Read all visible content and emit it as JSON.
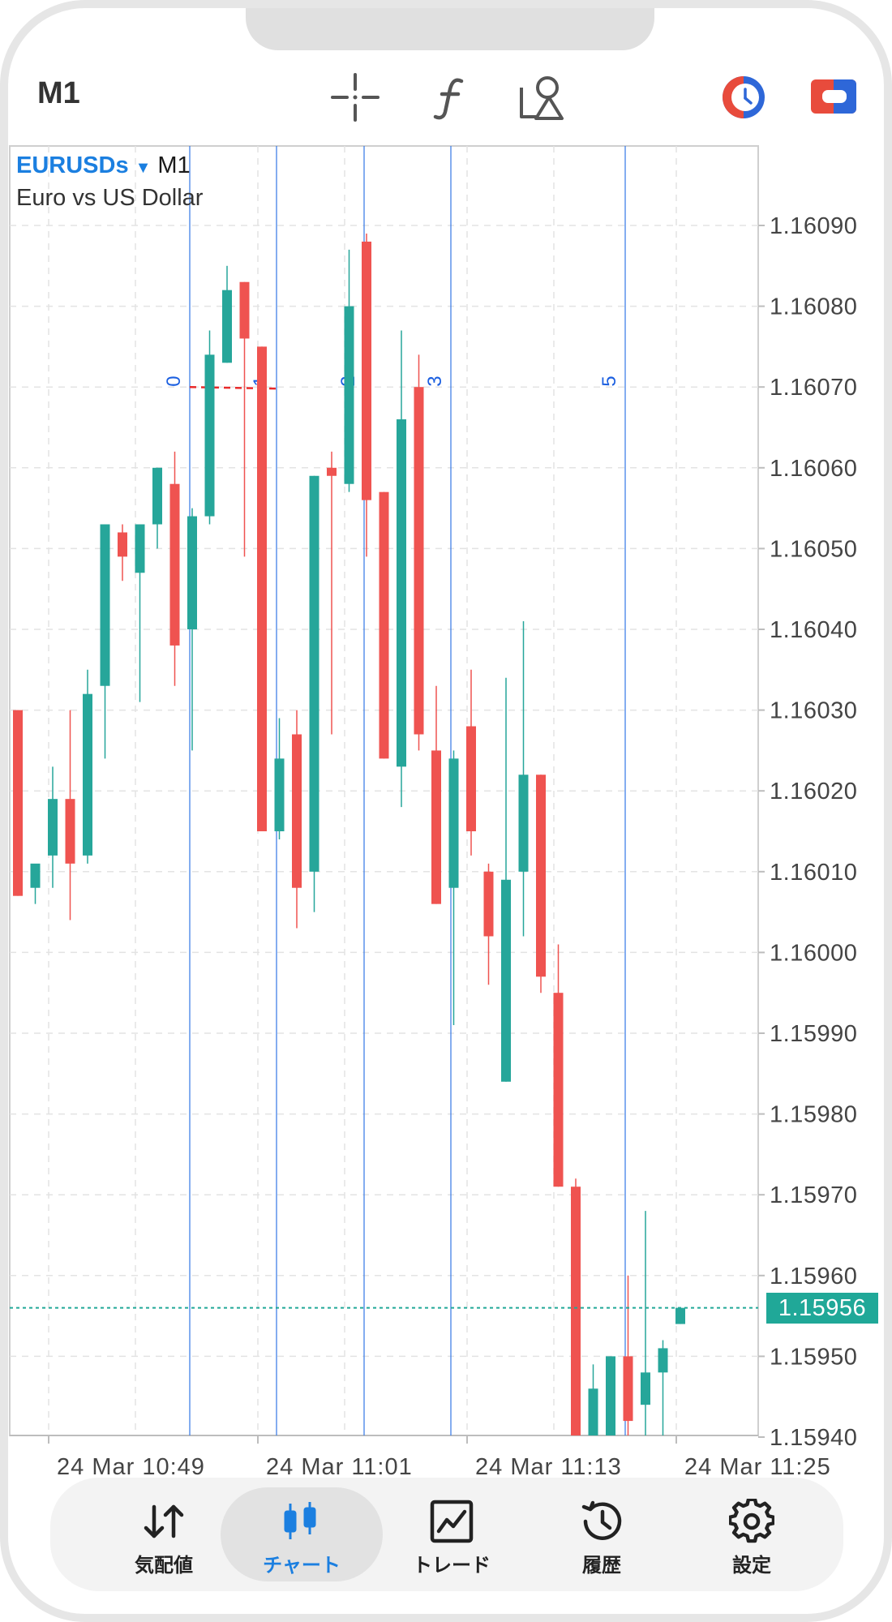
{
  "header": {
    "timeframe": "M1",
    "icons": [
      "crosshair-icon",
      "function-icon",
      "objects-icon",
      "one-click-trading-icon",
      "trade-panel-icon"
    ]
  },
  "chart": {
    "symbol": "EURUSDs",
    "arrow": "▼",
    "timeframe": "M1",
    "description": "Euro vs US Dollar",
    "current_price": "1.15956",
    "colors": {
      "bull": "#26a69a",
      "bear": "#ef5350",
      "vline": "#3f7fe8",
      "fib_label": "#1b5fe0"
    }
  },
  "chart_data": {
    "type": "candlestick",
    "y_ticks": [
      "1.16090",
      "1.16080",
      "1.16070",
      "1.16060",
      "1.16050",
      "1.16040",
      "1.16030",
      "1.16020",
      "1.16010",
      "1.16000",
      "1.15990",
      "1.15980",
      "1.15970",
      "1.15960",
      "1.15950",
      "1.15940"
    ],
    "x_ticks": [
      "24 Mar 10:49",
      "24 Mar 11:01",
      "24 Mar 11:13",
      "24 Mar 11:25"
    ],
    "current_price": 1.15956,
    "fib_time_zone_labels": [
      "0",
      "1",
      "2",
      "3",
      "5"
    ],
    "candles": [
      {
        "o": 1.1603,
        "h": 1.1603,
        "l": 1.16007,
        "c": 1.16007
      },
      {
        "o": 1.16008,
        "h": 1.1601,
        "l": 1.16006,
        "c": 1.16011
      },
      {
        "o": 1.16012,
        "h": 1.16023,
        "l": 1.16008,
        "c": 1.16019
      },
      {
        "o": 1.16019,
        "h": 1.1603,
        "l": 1.16004,
        "c": 1.16011
      },
      {
        "o": 1.16012,
        "h": 1.16035,
        "l": 1.16011,
        "c": 1.16032
      },
      {
        "o": 1.16033,
        "h": 1.16053,
        "l": 1.16024,
        "c": 1.16053
      },
      {
        "o": 1.16052,
        "h": 1.16053,
        "l": 1.16046,
        "c": 1.16049
      },
      {
        "o": 1.16047,
        "h": 1.16053,
        "l": 1.16031,
        "c": 1.16053
      },
      {
        "o": 1.16053,
        "h": 1.1606,
        "l": 1.1605,
        "c": 1.1606
      },
      {
        "o": 1.16058,
        "h": 1.16062,
        "l": 1.16033,
        "c": 1.16038
      },
      {
        "o": 1.1604,
        "h": 1.16055,
        "l": 1.16025,
        "c": 1.16054
      },
      {
        "o": 1.16054,
        "h": 1.16077,
        "l": 1.16053,
        "c": 1.16074
      },
      {
        "o": 1.16073,
        "h": 1.16085,
        "l": 1.16073,
        "c": 1.16082
      },
      {
        "o": 1.16083,
        "h": 1.16083,
        "l": 1.16049,
        "c": 1.16076
      },
      {
        "o": 1.16075,
        "h": 1.16075,
        "l": 1.16015,
        "c": 1.16015
      },
      {
        "o": 1.16015,
        "h": 1.16029,
        "l": 1.16014,
        "c": 1.16024
      },
      {
        "o": 1.16027,
        "h": 1.1603,
        "l": 1.16003,
        "c": 1.16008
      },
      {
        "o": 1.1601,
        "h": 1.16059,
        "l": 1.16005,
        "c": 1.16059
      },
      {
        "o": 1.1606,
        "h": 1.16062,
        "l": 1.16027,
        "c": 1.16059
      },
      {
        "o": 1.16058,
        "h": 1.16087,
        "l": 1.16057,
        "c": 1.1608
      },
      {
        "o": 1.16088,
        "h": 1.16089,
        "l": 1.16049,
        "c": 1.16056
      },
      {
        "o": 1.16057,
        "h": 1.16057,
        "l": 1.16024,
        "c": 1.16024
      },
      {
        "o": 1.16023,
        "h": 1.16077,
        "l": 1.16018,
        "c": 1.16066
      },
      {
        "o": 1.1607,
        "h": 1.16074,
        "l": 1.16025,
        "c": 1.16027
      },
      {
        "o": 1.16025,
        "h": 1.16033,
        "l": 1.16006,
        "c": 1.16006
      },
      {
        "o": 1.16008,
        "h": 1.16025,
        "l": 1.15991,
        "c": 1.16024
      },
      {
        "o": 1.16028,
        "h": 1.16035,
        "l": 1.16012,
        "c": 1.16015
      },
      {
        "o": 1.1601,
        "h": 1.16011,
        "l": 1.15996,
        "c": 1.16002
      },
      {
        "o": 1.15984,
        "h": 1.16034,
        "l": 1.15984,
        "c": 1.16009
      },
      {
        "o": 1.1601,
        "h": 1.16041,
        "l": 1.16002,
        "c": 1.16022
      },
      {
        "o": 1.16022,
        "h": 1.16022,
        "l": 1.15995,
        "c": 1.15997
      },
      {
        "o": 1.15995,
        "h": 1.16001,
        "l": 1.15971,
        "c": 1.15971
      },
      {
        "o": 1.15971,
        "h": 1.15972,
        "l": 1.1594,
        "c": 1.1594
      },
      {
        "o": 1.1594,
        "h": 1.15949,
        "l": 1.1594,
        "c": 1.15946
      },
      {
        "o": 1.1594,
        "h": 1.1595,
        "l": 1.1594,
        "c": 1.1595
      },
      {
        "o": 1.1595,
        "h": 1.1596,
        "l": 1.1594,
        "c": 1.15942
      },
      {
        "o": 1.15944,
        "h": 1.15968,
        "l": 1.1594,
        "c": 1.15948
      },
      {
        "o": 1.15948,
        "h": 1.15952,
        "l": 1.1594,
        "c": 1.15951
      },
      {
        "o": 1.15954,
        "h": 1.15956,
        "l": 1.15954,
        "c": 1.15956
      }
    ]
  },
  "tabs": [
    {
      "label": "気配値",
      "icon": "quotes-arrows-icon"
    },
    {
      "label": "チャート",
      "icon": "chart-candles-icon"
    },
    {
      "label": "トレード",
      "icon": "trade-graph-icon"
    },
    {
      "label": "履歴",
      "icon": "history-clock-icon"
    },
    {
      "label": "設定",
      "icon": "settings-gear-icon"
    }
  ]
}
